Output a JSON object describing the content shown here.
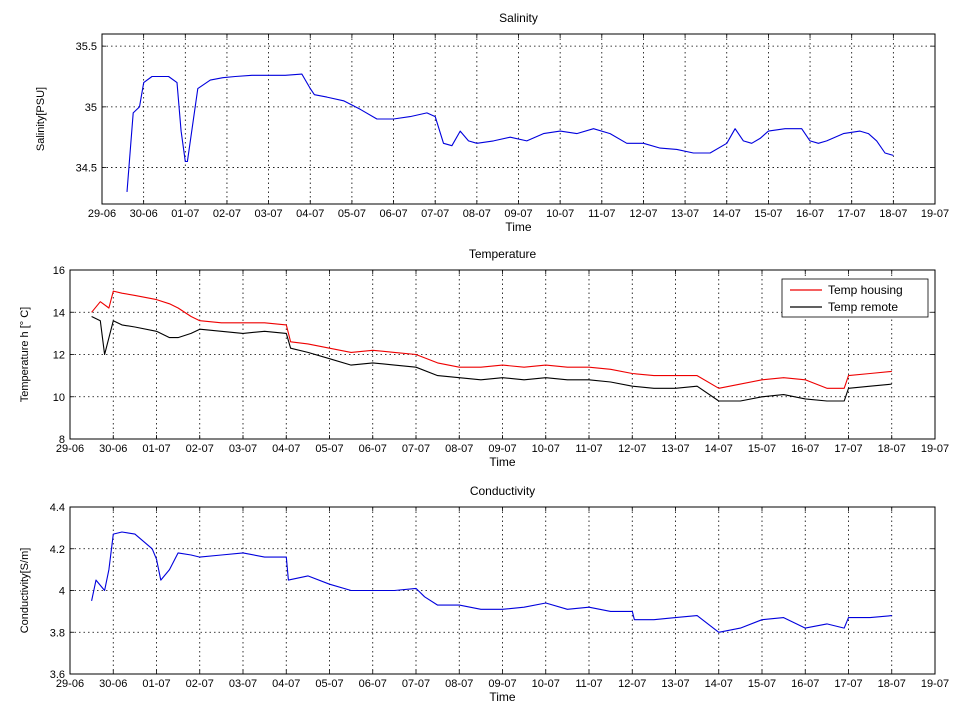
{
  "chart_data": [
    {
      "type": "line",
      "title": "Salinity",
      "xlabel": "Time",
      "ylabel": "Salinity[PSU]",
      "ylim": [
        34.2,
        35.6
      ],
      "yticks": [
        34.5,
        35,
        35.5
      ],
      "x_tick_labels": [
        "29-06",
        "30-06",
        "01-07",
        "02-07",
        "03-07",
        "04-07",
        "05-07",
        "06-07",
        "07-07",
        "08-07",
        "09-07",
        "10-07",
        "11-07",
        "12-07",
        "13-07",
        "14-07",
        "15-07",
        "16-07",
        "17-07",
        "18-07",
        "19-07"
      ],
      "grid": true,
      "series": [
        {
          "color": "#0000dd",
          "x": [
            0.6,
            0.75,
            0.9,
            1.0,
            1.2,
            1.4,
            1.6,
            1.8,
            1.9,
            2.0,
            2.05,
            2.3,
            2.6,
            2.9,
            3.2,
            3.6,
            4.0,
            4.4,
            4.8,
            5.0,
            5.1,
            5.4,
            5.8,
            6.2,
            6.6,
            7.0,
            7.4,
            7.8,
            8.0,
            8.2,
            8.4,
            8.6,
            8.8,
            9.0,
            9.4,
            9.8,
            10.2,
            10.6,
            11.0,
            11.4,
            11.8,
            12.2,
            12.6,
            13.0,
            13.4,
            13.8,
            14.2,
            14.6,
            15.0,
            15.2,
            15.4,
            15.6,
            15.8,
            16.0,
            16.4,
            16.8,
            17.0,
            17.2,
            17.4,
            17.8,
            18.2,
            18.4,
            18.6,
            18.8,
            19.0
          ],
          "values": [
            34.3,
            34.95,
            35.0,
            35.2,
            35.25,
            35.25,
            35.25,
            35.2,
            34.8,
            34.55,
            34.55,
            35.15,
            35.22,
            35.24,
            35.25,
            35.26,
            35.26,
            35.26,
            35.27,
            35.15,
            35.1,
            35.08,
            35.05,
            34.98,
            34.9,
            34.9,
            34.92,
            34.95,
            34.92,
            34.7,
            34.68,
            34.8,
            34.72,
            34.7,
            34.72,
            34.75,
            34.72,
            34.78,
            34.8,
            34.78,
            34.82,
            34.78,
            34.7,
            34.7,
            34.66,
            34.65,
            34.62,
            34.62,
            34.7,
            34.82,
            34.72,
            34.7,
            34.74,
            34.8,
            34.82,
            34.82,
            34.72,
            34.7,
            34.72,
            34.78,
            34.8,
            34.78,
            34.72,
            34.62,
            34.6
          ]
        }
      ]
    },
    {
      "type": "line",
      "title": "Temperature",
      "xlabel": "Time",
      "ylabel": "Temperature h [° C]",
      "ylim": [
        8,
        16
      ],
      "yticks": [
        8,
        10,
        12,
        14,
        16
      ],
      "x_tick_labels": [
        "29-06",
        "30-06",
        "01-07",
        "02-07",
        "03-07",
        "04-07",
        "05-07",
        "06-07",
        "07-07",
        "08-07",
        "09-07",
        "10-07",
        "11-07",
        "12-07",
        "13-07",
        "14-07",
        "15-07",
        "16-07",
        "17-07",
        "18-07",
        "19-07"
      ],
      "grid": true,
      "legend_position": "top-right",
      "series": [
        {
          "name": "Temp housing",
          "color": "#ee0000",
          "x": [
            0.5,
            0.7,
            0.9,
            1.0,
            1.2,
            1.5,
            2.0,
            2.3,
            2.5,
            2.8,
            3.0,
            3.5,
            4.0,
            4.5,
            5.0,
            5.1,
            5.5,
            6.0,
            6.5,
            7.0,
            7.5,
            8.0,
            8.5,
            9.0,
            9.5,
            10.0,
            10.5,
            11.0,
            11.5,
            12.0,
            12.5,
            13.0,
            13.5,
            14.0,
            14.5,
            15.0,
            15.5,
            16.0,
            16.5,
            17.0,
            17.5,
            17.9,
            18.0,
            18.5,
            19.0
          ],
          "values": [
            14.0,
            14.5,
            14.2,
            15.0,
            14.9,
            14.8,
            14.6,
            14.4,
            14.2,
            13.8,
            13.6,
            13.5,
            13.5,
            13.5,
            13.4,
            12.6,
            12.5,
            12.3,
            12.1,
            12.2,
            12.1,
            12.0,
            11.6,
            11.4,
            11.4,
            11.5,
            11.4,
            11.5,
            11.4,
            11.4,
            11.3,
            11.1,
            11.0,
            11.0,
            11.0,
            10.4,
            10.6,
            10.8,
            10.9,
            10.8,
            10.4,
            10.4,
            11.0,
            11.1,
            11.2
          ]
        },
        {
          "name": "Temp remote",
          "color": "#000000",
          "x": [
            0.5,
            0.7,
            0.8,
            1.0,
            1.2,
            1.5,
            2.0,
            2.3,
            2.5,
            2.8,
            3.0,
            3.5,
            4.0,
            4.5,
            5.0,
            5.1,
            5.5,
            6.0,
            6.5,
            7.0,
            7.5,
            8.0,
            8.5,
            9.0,
            9.5,
            10.0,
            10.5,
            11.0,
            11.5,
            12.0,
            12.5,
            13.0,
            13.5,
            14.0,
            14.5,
            15.0,
            15.5,
            16.0,
            16.5,
            17.0,
            17.5,
            17.9,
            18.0,
            18.5,
            19.0
          ],
          "values": [
            13.8,
            13.6,
            12.0,
            13.6,
            13.4,
            13.3,
            13.1,
            12.8,
            12.8,
            13.0,
            13.2,
            13.1,
            13.0,
            13.1,
            13.0,
            12.3,
            12.1,
            11.8,
            11.5,
            11.6,
            11.5,
            11.4,
            11.0,
            10.9,
            10.8,
            10.9,
            10.8,
            10.9,
            10.8,
            10.8,
            10.7,
            10.5,
            10.4,
            10.4,
            10.5,
            9.8,
            9.8,
            10.0,
            10.1,
            9.9,
            9.8,
            9.8,
            10.4,
            10.5,
            10.6
          ]
        }
      ]
    },
    {
      "type": "line",
      "title": "Conductivity",
      "xlabel": "Time",
      "ylabel": "Conductivity[S/m]",
      "ylim": [
        3.6,
        4.4
      ],
      "yticks": [
        3.6,
        3.8,
        4,
        4.2,
        4.4
      ],
      "x_tick_labels": [
        "29-06",
        "30-06",
        "01-07",
        "02-07",
        "03-07",
        "04-07",
        "05-07",
        "06-07",
        "07-07",
        "08-07",
        "09-07",
        "10-07",
        "11-07",
        "12-07",
        "13-07",
        "14-07",
        "15-07",
        "16-07",
        "17-07",
        "18-07",
        "19-07"
      ],
      "grid": true,
      "series": [
        {
          "color": "#0000dd",
          "x": [
            0.5,
            0.6,
            0.8,
            0.9,
            1.0,
            1.2,
            1.5,
            1.9,
            2.0,
            2.1,
            2.3,
            2.5,
            2.8,
            3.0,
            3.5,
            4.0,
            4.5,
            5.0,
            5.05,
            5.5,
            6.0,
            6.5,
            7.0,
            7.5,
            8.0,
            8.2,
            8.5,
            9.0,
            9.5,
            10.0,
            10.5,
            11.0,
            11.5,
            12.0,
            12.5,
            13.0,
            13.05,
            13.5,
            14.0,
            14.5,
            15.0,
            15.5,
            16.0,
            16.5,
            17.0,
            17.5,
            17.9,
            18.0,
            18.5,
            19.0
          ],
          "values": [
            3.95,
            4.05,
            4.0,
            4.1,
            4.27,
            4.28,
            4.27,
            4.2,
            4.15,
            4.05,
            4.1,
            4.18,
            4.17,
            4.16,
            4.17,
            4.18,
            4.16,
            4.16,
            4.05,
            4.07,
            4.03,
            4.0,
            4.0,
            4.0,
            4.01,
            3.97,
            3.93,
            3.93,
            3.91,
            3.91,
            3.92,
            3.94,
            3.91,
            3.92,
            3.9,
            3.9,
            3.86,
            3.86,
            3.87,
            3.88,
            3.8,
            3.82,
            3.86,
            3.87,
            3.82,
            3.84,
            3.82,
            3.87,
            3.87,
            3.88
          ]
        }
      ]
    }
  ]
}
